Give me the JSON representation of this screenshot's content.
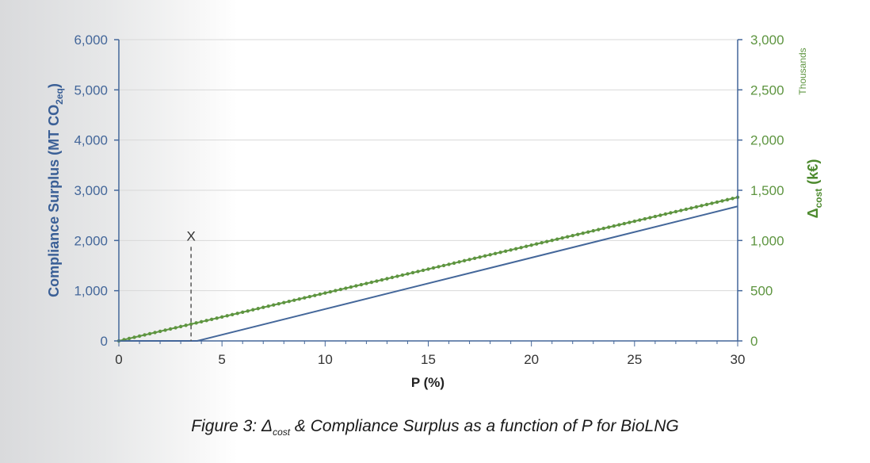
{
  "chart_data": {
    "type": "line",
    "x": [
      0,
      30
    ],
    "xlabel": "P (%)",
    "xlim": [
      0,
      30
    ],
    "xticks": [
      "0",
      "5",
      "10",
      "15",
      "20",
      "25",
      "30"
    ],
    "ylabel_left": {
      "main": "Compliance Surplus (MT CO",
      "sub": "2eq",
      "close": ")"
    },
    "ylim_left": [
      0,
      6000
    ],
    "yticks_left": [
      "0",
      "1,000",
      "2,000",
      "3,000",
      "4,000",
      "5,000",
      "6,000"
    ],
    "ylabel_right": {
      "delta": "Δ",
      "sub": "cost",
      "rest": " (k€)"
    },
    "ylim_right": [
      0,
      3000
    ],
    "yticks_right": [
      "0",
      "500",
      "1,000",
      "1,500",
      "2,000",
      "2,500",
      "3,000"
    ],
    "right_axis_units": "Thousands",
    "grid": true,
    "series": [
      {
        "name": "Compliance Surplus",
        "axis": "left",
        "color": "#44679a",
        "points": [
          [
            0,
            0
          ],
          [
            3.8,
            0
          ],
          [
            30,
            2680
          ]
        ]
      },
      {
        "name": "Δcost",
        "axis": "right",
        "color": "#5e9540",
        "marker": "dot",
        "points": [
          [
            0,
            0
          ],
          [
            30,
            1430
          ]
        ]
      }
    ],
    "annotations": [
      {
        "text": "X",
        "x": 3.5,
        "y_left": 2000,
        "style": "dashed-vertical"
      }
    ]
  },
  "caption": {
    "prefix": "Figure 3: Δ",
    "sub": "cost",
    "rest": " & Compliance Surplus as a function of P for BioLNG"
  }
}
